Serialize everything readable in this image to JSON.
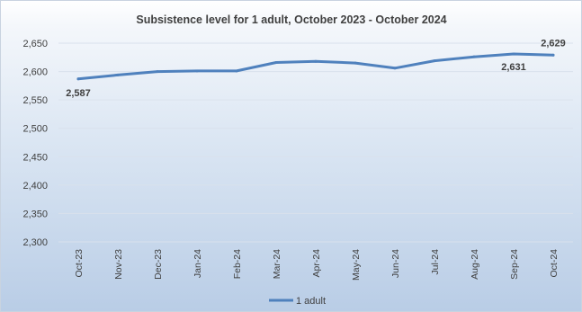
{
  "chart_data": {
    "type": "line",
    "title": "Subsistence level for 1 adult, October 2023 - October 2024",
    "xlabel": "",
    "ylabel": "",
    "categories": [
      "Oct-23",
      "Nov-23",
      "Dec-23",
      "Jan-24",
      "Feb-24",
      "Mar-24",
      "Apr-24",
      "May-24",
      "Jun-24",
      "Jul-24",
      "Aug-24",
      "Sep-24",
      "Oct-24"
    ],
    "series": [
      {
        "name": "1 adult",
        "color": "#4f81bd",
        "values": [
          2587,
          2594,
          2600,
          2601,
          2601,
          2616,
          2618,
          2615,
          2606,
          2619,
          2626,
          2631,
          2629
        ]
      }
    ],
    "ylim": [
      2300,
      2650
    ],
    "yticks": [
      2300,
      2350,
      2400,
      2450,
      2500,
      2550,
      2600,
      2650
    ],
    "ytick_labels": [
      "2,300",
      "2,350",
      "2,400",
      "2,450",
      "2,500",
      "2,550",
      "2,600",
      "2,650"
    ],
    "grid": true,
    "legend_position": "bottom",
    "data_labels": [
      {
        "category": "Oct-23",
        "text": "2,587"
      },
      {
        "category": "Sep-24",
        "text": "2,631"
      },
      {
        "category": "Oct-24",
        "text": "2,629"
      }
    ]
  }
}
